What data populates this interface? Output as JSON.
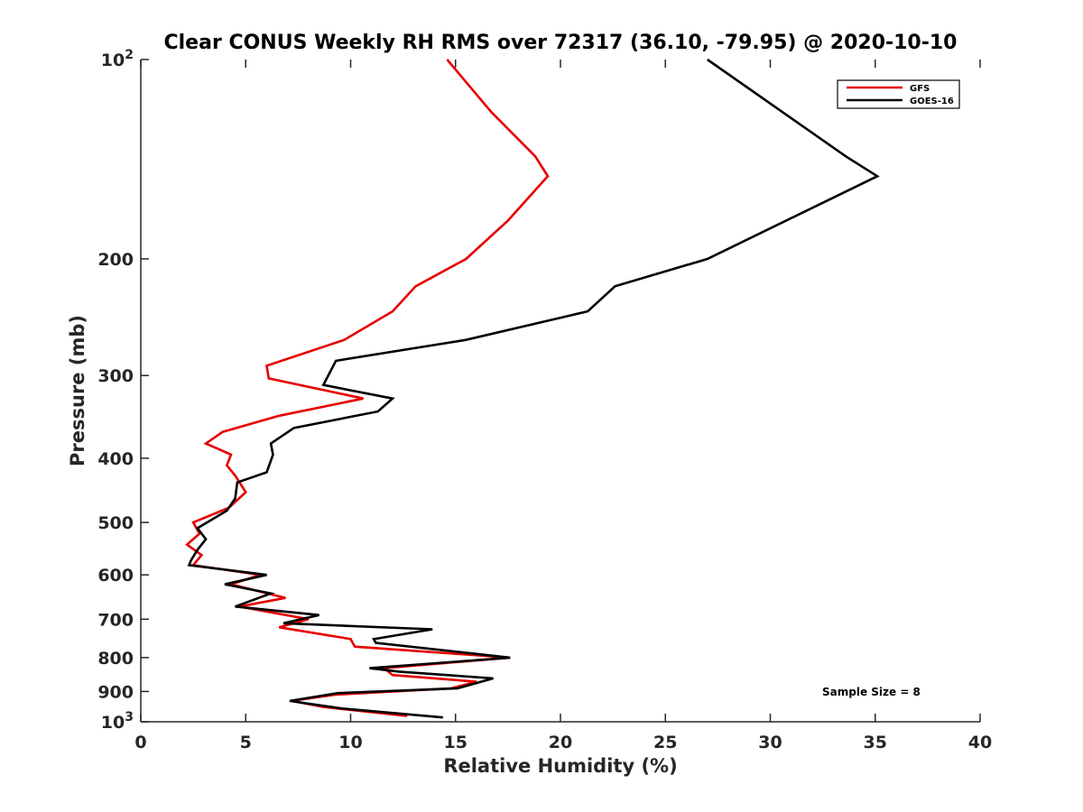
{
  "chart_data": {
    "type": "line",
    "title": "Clear CONUS Weekly RH RMS over 72317 (36.10, -79.95) @ 2020-10-10",
    "xlabel": "Relative Humidity (%)",
    "ylabel": "Pressure (mb)",
    "xlim": [
      0,
      40
    ],
    "ylim": [
      100,
      1000
    ],
    "y_scale": "log",
    "y_reversed": true,
    "grid": false,
    "legend_position": "top-right",
    "x_ticks": [
      "0",
      "5",
      "10",
      "15",
      "20",
      "25",
      "30",
      "35",
      "40"
    ],
    "y_ticks": [
      {
        "value": 100,
        "label": "10",
        "sup": "2"
      },
      {
        "value": 200,
        "label": "200",
        "sup": ""
      },
      {
        "value": 300,
        "label": "300",
        "sup": ""
      },
      {
        "value": 400,
        "label": "400",
        "sup": ""
      },
      {
        "value": 500,
        "label": "500",
        "sup": ""
      },
      {
        "value": 600,
        "label": "600",
        "sup": ""
      },
      {
        "value": 700,
        "label": "700",
        "sup": ""
      },
      {
        "value": 800,
        "label": "800",
        "sup": ""
      },
      {
        "value": 900,
        "label": "900",
        "sup": ""
      },
      {
        "value": 1000,
        "label": "10",
        "sup": "3"
      }
    ],
    "series": [
      {
        "name": "GFS",
        "color": "#e60000",
        "x": [
          14.6,
          16.7,
          18.8,
          19.4,
          17.5,
          15.5,
          13.1,
          12.0,
          9.7,
          6.0,
          6.1,
          10.6,
          6.6,
          3.9,
          3.1,
          4.3,
          4.1,
          4.5,
          5.0,
          4.2,
          2.5,
          2.8,
          2.2,
          2.9,
          2.5,
          5.7,
          4.3,
          6.9,
          4.7,
          8.0,
          6.6,
          10.0,
          10.2,
          17.6,
          11.6,
          12.0,
          16.0,
          14.8,
          9.3,
          7.2,
          8.7,
          12.7
        ],
        "y": [
          100,
          120,
          140,
          150,
          175,
          200,
          220,
          240,
          265,
          290,
          303,
          325,
          345,
          365,
          380,
          395,
          410,
          425,
          450,
          475,
          500,
          520,
          540,
          560,
          580,
          600,
          620,
          650,
          670,
          700,
          720,
          750,
          770,
          800,
          830,
          850,
          870,
          890,
          910,
          930,
          950,
          980
        ]
      },
      {
        "name": "GOES-16",
        "color": "#000000",
        "x": [
          27.0,
          33.6,
          35.1,
          27.0,
          22.6,
          21.3,
          15.5,
          9.3,
          8.7,
          12.0,
          11.3,
          7.3,
          6.2,
          6.3,
          6.0,
          4.6,
          4.5,
          4.1,
          2.7,
          3.1,
          2.7,
          2.4,
          2.3,
          6.0,
          4.0,
          6.2,
          4.5,
          8.5,
          6.8,
          13.9,
          11.1,
          11.2,
          17.6,
          10.9,
          12.3,
          16.8,
          15.1,
          9.4,
          7.1,
          9.6,
          14.4
        ],
        "y": [
          100,
          140,
          150,
          200,
          220,
          240,
          265,
          285,
          310,
          325,
          340,
          360,
          380,
          395,
          420,
          435,
          460,
          480,
          510,
          530,
          550,
          570,
          580,
          600,
          620,
          640,
          670,
          690,
          710,
          725,
          750,
          760,
          800,
          830,
          840,
          860,
          890,
          905,
          930,
          955,
          985
        ]
      }
    ],
    "annotation": "Sample Size = 8"
  }
}
